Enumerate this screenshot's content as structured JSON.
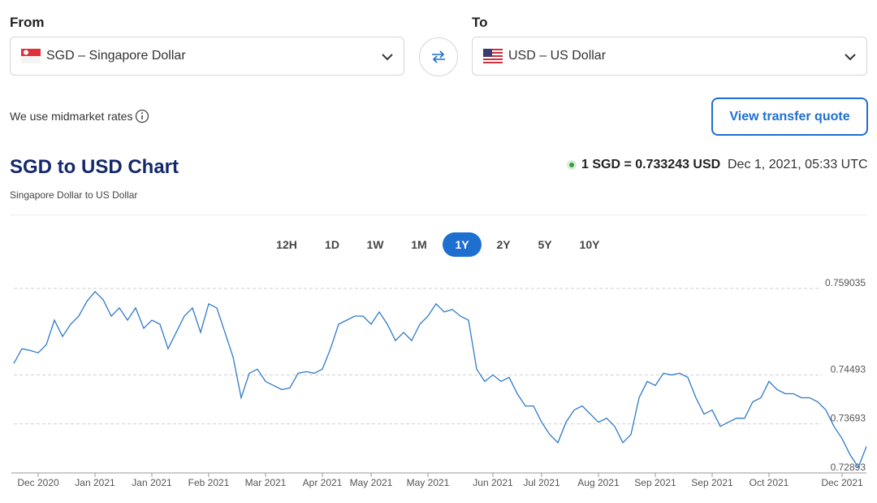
{
  "converter": {
    "from_label": "From",
    "from_currency": "SGD – Singapore Dollar",
    "to_label": "To",
    "to_currency": "USD – US Dollar",
    "note": "We use midmarket rates",
    "button": "View transfer quote"
  },
  "rate": {
    "text": "1 SGD = 0.733243 USD",
    "time": "Dec 1, 2021, 05:33 UTC"
  },
  "periods": {
    "options": [
      "12H",
      "1D",
      "1W",
      "1M",
      "1Y",
      "2Y",
      "5Y",
      "10Y"
    ],
    "selected": "1Y"
  },
  "chart_data": {
    "type": "line",
    "title": "SGD to USD Chart",
    "subtitle": "Singapore Dollar to US Dollar",
    "color": "#2f7ac9",
    "grid": true,
    "categories": [
      null,
      null,
      null,
      "Dec 2020",
      null,
      null,
      null,
      null,
      null,
      null,
      "Jan 2021",
      null,
      null,
      null,
      null,
      null,
      null,
      "Jan 2021",
      null,
      null,
      null,
      null,
      null,
      null,
      "Feb 2021",
      null,
      null,
      null,
      null,
      null,
      null,
      "Mar 2021",
      null,
      null,
      null,
      null,
      null,
      null,
      "Apr 2021",
      null,
      null,
      null,
      null,
      null,
      "May 2021",
      null,
      null,
      null,
      null,
      null,
      null,
      "May 2021",
      null,
      null,
      null,
      null,
      null,
      null,
      null,
      "Jun 2021",
      null,
      null,
      null,
      null,
      null,
      "Jul 2021",
      null,
      null,
      null,
      null,
      null,
      null,
      "Aug 2021",
      null,
      null,
      null,
      null,
      null,
      null,
      "Sep 2021",
      null,
      null,
      null,
      null,
      null,
      null,
      "Sep 2021",
      null,
      null,
      null,
      null,
      null,
      null,
      "Oct 2021",
      null,
      null,
      null,
      null,
      null,
      null,
      null,
      null,
      "Dec 2021",
      null,
      null,
      null
    ],
    "values": [
      0.7468,
      0.7492,
      0.74893,
      0.74853,
      0.74986,
      0.75386,
      0.7512,
      0.7532,
      0.75453,
      0.75693,
      0.75853,
      0.7572,
      0.75453,
      0.75586,
      0.75386,
      0.75586,
      0.75253,
      0.75386,
      0.7532,
      0.7492,
      0.75186,
      0.75453,
      0.75586,
      0.75186,
      0.75653,
      0.75586,
      0.75186,
      0.74786,
      0.7412,
      0.7452,
      0.74586,
      0.74386,
      0.7432,
      0.74253,
      0.7428,
      0.7452,
      0.74546,
      0.7452,
      0.74586,
      0.7492,
      0.7532,
      0.75386,
      0.75453,
      0.75453,
      0.7532,
      0.7552,
      0.7532,
      0.75053,
      0.75186,
      0.75053,
      0.7532,
      0.75453,
      0.75653,
      0.7552,
      0.7556,
      0.75453,
      0.75386,
      0.74586,
      0.74386,
      0.74493,
      0.74386,
      0.74453,
      0.74186,
      0.73986,
      0.73986,
      0.7372,
      0.7352,
      0.73386,
      0.7372,
      0.7392,
      0.73986,
      0.73853,
      0.7372,
      0.73786,
      0.73653,
      0.73386,
      0.7352,
      0.7412,
      0.74386,
      0.7432,
      0.7452,
      0.74493,
      0.7452,
      0.74453,
      0.7412,
      0.73853,
      0.7392,
      0.73653,
      0.7372,
      0.73786,
      0.73786,
      0.74053,
      0.7412,
      0.74386,
      0.74253,
      0.74186,
      0.74186,
      0.7412,
      0.7412,
      0.74053,
      0.7392,
      0.73653,
      0.73453,
      0.73186,
      0.72986,
      0.733243
    ],
    "ylim": [
      0.72893,
      0.759035
    ],
    "yticks": [
      0.72893,
      0.73693,
      0.74493,
      0.759035
    ]
  }
}
